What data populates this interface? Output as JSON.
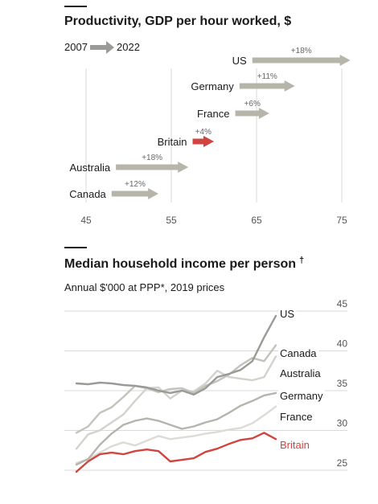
{
  "colors": {
    "text": "#1a1a1a",
    "grid": "#d9d9d9",
    "arrow_grey": "#b7b5aa",
    "highlight_red": "#d0453f",
    "us_line": "#9a9a96",
    "canada_line": "#c3c2bb",
    "australia_line": "#d3d2cc",
    "germany_line": "#b5b4ad",
    "france_line": "#dcdbd6"
  },
  "chart_data": [
    {
      "type": "arrow",
      "title": "Productivity, GDP per hour worked, $",
      "legend_start": "2007",
      "legend_end": "2022",
      "xlim": [
        45,
        75
      ],
      "xticks": [
        "45",
        "55",
        "65",
        "75"
      ],
      "grid": true,
      "highlight": "Britain",
      "series": [
        {
          "name": "US",
          "start": 64.5,
          "end": 76,
          "change": "+18%"
        },
        {
          "name": "Germany",
          "start": 63,
          "end": 69.5,
          "change": "+11%"
        },
        {
          "name": "France",
          "start": 62.5,
          "end": 66.5,
          "change": "+6%"
        },
        {
          "name": "Britain",
          "start": 57.5,
          "end": 60,
          "change": "+4%"
        },
        {
          "name": "Australia",
          "start": 48.5,
          "end": 57,
          "change": "+18%"
        },
        {
          "name": "Canada",
          "start": 48,
          "end": 53.5,
          "change": "+12%"
        }
      ]
    },
    {
      "type": "line",
      "title": "Median household income per person",
      "title_marker": "†",
      "subtitle": "Annual $'000 at PPP*, 2019 prices",
      "ylim": [
        22.5,
        45
      ],
      "yticks": [
        "25",
        "30",
        "35",
        "40",
        "45"
      ],
      "grid": true,
      "highlight": "Britain",
      "series": [
        {
          "name": "US",
          "values": [
            35.2,
            35.1,
            35.3,
            35.2,
            35.0,
            34.9,
            34.7,
            34.3,
            34.0,
            34.3,
            33.8,
            34.6,
            36.0,
            36.4,
            36.9,
            38.0,
            41.0,
            43.7
          ]
        },
        {
          "name": "Canada",
          "values": [
            29.0,
            29.8,
            31.5,
            32.2,
            33.5,
            34.9,
            34.6,
            34.1,
            34.5,
            34.6,
            34.0,
            34.9,
            35.5,
            36.3,
            37.5,
            38.4,
            38.0,
            40.0
          ]
        },
        {
          "name": "Australia",
          "values": [
            27.0,
            28.8,
            29.3,
            30.3,
            31.3,
            33.0,
            34.6,
            34.7,
            33.3,
            34.3,
            34.2,
            35.2,
            36.8,
            36.0,
            35.8,
            35.6,
            36.0,
            38.6
          ]
        },
        {
          "name": "Germany",
          "values": [
            25.0,
            25.7,
            27.5,
            28.9,
            30.0,
            30.5,
            30.8,
            30.5,
            30.0,
            29.5,
            29.8,
            30.3,
            30.7,
            31.5,
            32.4,
            33.0,
            33.7,
            34.0
          ]
        },
        {
          "name": "France",
          "values": [
            25.2,
            25.7,
            26.5,
            27.3,
            27.8,
            27.4,
            28.0,
            28.6,
            28.2,
            28.4,
            28.6,
            28.9,
            29.1,
            29.4,
            29.6,
            30.2,
            31.2,
            32.3
          ]
        },
        {
          "name": "Britain",
          "values": [
            24.1,
            25.4,
            26.3,
            26.5,
            26.3,
            26.7,
            26.9,
            26.7,
            25.4,
            25.6,
            25.8,
            26.6,
            27.0,
            27.6,
            28.1,
            28.3,
            29.0,
            28.2
          ]
        }
      ]
    }
  ]
}
